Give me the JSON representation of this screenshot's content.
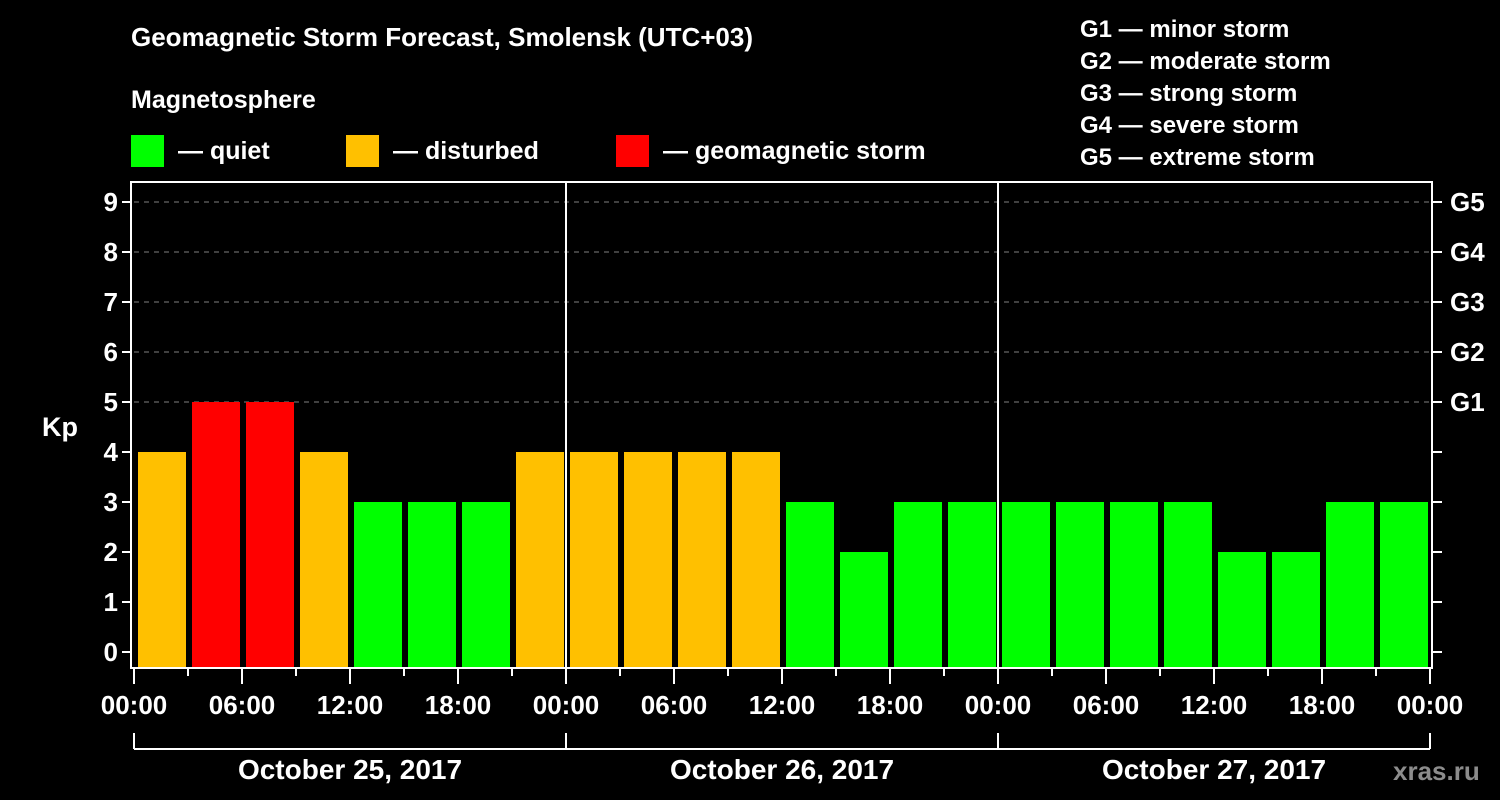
{
  "title": "Geomagnetic Storm Forecast, Smolensk (UTC+03)",
  "legend": {
    "heading": "Magnetosphere",
    "items": [
      {
        "label": "— quiet",
        "color": "#00ff00"
      },
      {
        "label": "— disturbed",
        "color": "#ffc000"
      },
      {
        "label": "— geomagnetic storm",
        "color": "#ff0000"
      }
    ]
  },
  "g_scale": [
    "G1 — minor storm",
    "G2 — moderate storm",
    "G3 — strong storm",
    "G4 — severe storm",
    "G5 — extreme storm"
  ],
  "y_axis": {
    "label": "Kp",
    "ticks": [
      "0",
      "1",
      "2",
      "3",
      "4",
      "5",
      "6",
      "7",
      "8",
      "9"
    ],
    "right_ticks": {
      "5": "G1",
      "6": "G2",
      "7": "G3",
      "8": "G4",
      "9": "G5"
    }
  },
  "x_axis": {
    "tick_labels": [
      "00:00",
      "06:00",
      "12:00",
      "18:00",
      "00:00",
      "06:00",
      "12:00",
      "18:00",
      "00:00",
      "06:00",
      "12:00",
      "18:00",
      "00:00"
    ],
    "dates": [
      "October 25, 2017",
      "October 26, 2017",
      "October 27, 2017"
    ]
  },
  "watermark": "xras.ru",
  "colors": {
    "quiet": "#00ff00",
    "disturbed": "#ffc000",
    "storm": "#ff0000",
    "grid": "#808080"
  },
  "chart_data": {
    "type": "bar",
    "title": "Geomagnetic Storm Forecast, Smolensk (UTC+03)",
    "xlabel": "",
    "ylabel": "Kp",
    "ylim": [
      0,
      9
    ],
    "grid": "dashed horizontal at Kp 5-9",
    "interval_hours": 3,
    "categories": [
      "Oct 25 00:00",
      "Oct 25 03:00",
      "Oct 25 06:00",
      "Oct 25 09:00",
      "Oct 25 12:00",
      "Oct 25 15:00",
      "Oct 25 18:00",
      "Oct 25 21:00",
      "Oct 26 00:00",
      "Oct 26 03:00",
      "Oct 26 06:00",
      "Oct 26 09:00",
      "Oct 26 12:00",
      "Oct 26 15:00",
      "Oct 26 18:00",
      "Oct 26 21:00",
      "Oct 27 00:00",
      "Oct 27 03:00",
      "Oct 27 06:00",
      "Oct 27 09:00",
      "Oct 27 12:00",
      "Oct 27 15:00",
      "Oct 27 18:00",
      "Oct 27 21:00"
    ],
    "values": [
      4,
      5,
      5,
      4,
      3,
      3,
      3,
      4,
      4,
      4,
      4,
      4,
      3,
      2,
      3,
      3,
      3,
      3,
      3,
      3,
      2,
      2,
      3,
      3
    ],
    "status": [
      "disturbed",
      "storm",
      "storm",
      "disturbed",
      "quiet",
      "quiet",
      "quiet",
      "disturbed",
      "disturbed",
      "disturbed",
      "disturbed",
      "disturbed",
      "quiet",
      "quiet",
      "quiet",
      "quiet",
      "quiet",
      "quiet",
      "quiet",
      "quiet",
      "quiet",
      "quiet",
      "quiet",
      "quiet"
    ],
    "legend": [
      "quiet",
      "disturbed",
      "geomagnetic storm"
    ],
    "right_axis_labels": {
      "5": "G1",
      "6": "G2",
      "7": "G3",
      "8": "G4",
      "9": "G5"
    }
  }
}
